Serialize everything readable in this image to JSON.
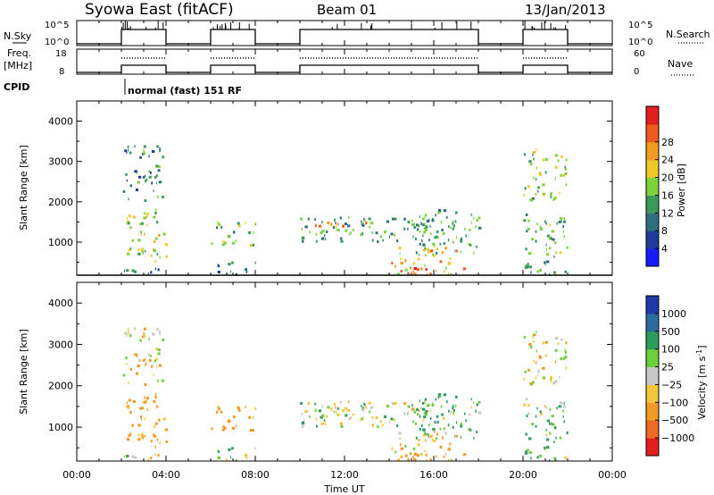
{
  "header": {
    "station": "Syowa East (fitACF)",
    "beam": "Beam 01",
    "date": "13/Jan/2013"
  },
  "nsky_panel": {
    "left_label": "N.Sky",
    "right_label": "N.Search",
    "left_ticks": [
      "10^5",
      "10^0"
    ],
    "right_ticks": [
      "10^5",
      "10^0"
    ]
  },
  "freq_panel": {
    "left_label_line1": "Freq.",
    "left_label_line2": "[MHz]",
    "right_label": "Nave",
    "left_ticks": [
      "18",
      "8"
    ],
    "right_ticks": [
      "60",
      "0"
    ]
  },
  "cpid": {
    "label": "CPID",
    "mode": "normal (fast) 151 RF"
  },
  "time_axis": {
    "label": "Time UT",
    "ticks": [
      "00:00",
      "04:00",
      "08:00",
      "12:00",
      "16:00",
      "20:00",
      "00:00"
    ]
  },
  "range_axis": {
    "label": "Slant Range [km]",
    "ticks": [
      "1000",
      "2000",
      "3000",
      "4000"
    ]
  },
  "power_colorbar": {
    "label": "Power [dB]",
    "ticks": [
      "4",
      "8",
      "12",
      "16",
      "20",
      "24",
      "28"
    ],
    "colors": [
      "#1a1aff",
      "#1e3c9a",
      "#2f6e7e",
      "#3a9a5a",
      "#7bd23c",
      "#f0c828",
      "#f39a20",
      "#ef5a1e",
      "#e21e1e"
    ]
  },
  "velocity_colorbar": {
    "label": "Velocity [m s",
    "label_sup": "-1",
    "label_end": "]",
    "ticks": [
      "1000",
      "500",
      "100",
      "25",
      "−25",
      "−100",
      "−500",
      "−1000"
    ],
    "colors": [
      "#1e3aa8",
      "#2b6e9e",
      "#2e9a5c",
      "#6cd03c",
      "#c8c8c8",
      "#f2c83a",
      "#f39a26",
      "#ef6a22",
      "#e21e1e"
    ]
  },
  "chart_data": {
    "type": "heatmap",
    "title": "Syowa East (fitACF)",
    "xlabel": "Time UT",
    "ylabel": "Slant Range [km]",
    "xlim": [
      "00:00",
      "24:00"
    ],
    "ylim": [
      180,
      4500
    ],
    "operating_intervals": [
      [
        "02:00",
        "04:00"
      ],
      [
        "06:00",
        "08:00"
      ],
      [
        "10:00",
        "18:00"
      ],
      [
        "20:00",
        "22:00"
      ]
    ],
    "power_scale": [
      0,
      30
    ],
    "velocity_scale": [
      -1000,
      1000
    ],
    "scatter_regions": [
      {
        "start": "02:10",
        "end": "04:00",
        "range_km": [
          500,
          1800
        ],
        "power_db": 16,
        "velocity": -200
      },
      {
        "start": "02:00",
        "end": "04:00",
        "range_km": [
          180,
          400
        ],
        "power_db": 10,
        "velocity": 0
      },
      {
        "start": "02:00",
        "end": "03:50",
        "range_km": [
          2000,
          3400
        ],
        "power_db": 10,
        "velocity": -50
      },
      {
        "start": "06:00",
        "end": "08:00",
        "range_km": [
          900,
          1500
        ],
        "power_db": 14,
        "velocity": -200
      },
      {
        "start": "06:00",
        "end": "08:00",
        "range_km": [
          180,
          500
        ],
        "power_db": 8,
        "velocity": 50
      },
      {
        "start": "10:00",
        "end": "18:00",
        "range_km": [
          1000,
          1600
        ],
        "power_db": 12,
        "velocity": 0
      },
      {
        "start": "10:30",
        "end": "13:00",
        "range_km": [
          1300,
          1500
        ],
        "power_db": 22,
        "velocity": 0
      },
      {
        "start": "14:00",
        "end": "17:00",
        "range_km": [
          180,
          900
        ],
        "power_db": 20,
        "velocity": -100
      },
      {
        "start": "14:30",
        "end": "17:30",
        "range_km": [
          180,
          350
        ],
        "power_db": 26,
        "velocity": -200
      },
      {
        "start": "15:00",
        "end": "18:00",
        "range_km": [
          700,
          1800
        ],
        "power_db": 12,
        "velocity": 150
      },
      {
        "start": "20:00",
        "end": "22:00",
        "range_km": [
          180,
          1700
        ],
        "power_db": 12,
        "velocity": 100
      },
      {
        "start": "20:00",
        "end": "22:00",
        "range_km": [
          2000,
          3300
        ],
        "power_db": 14,
        "velocity": -50
      }
    ]
  }
}
